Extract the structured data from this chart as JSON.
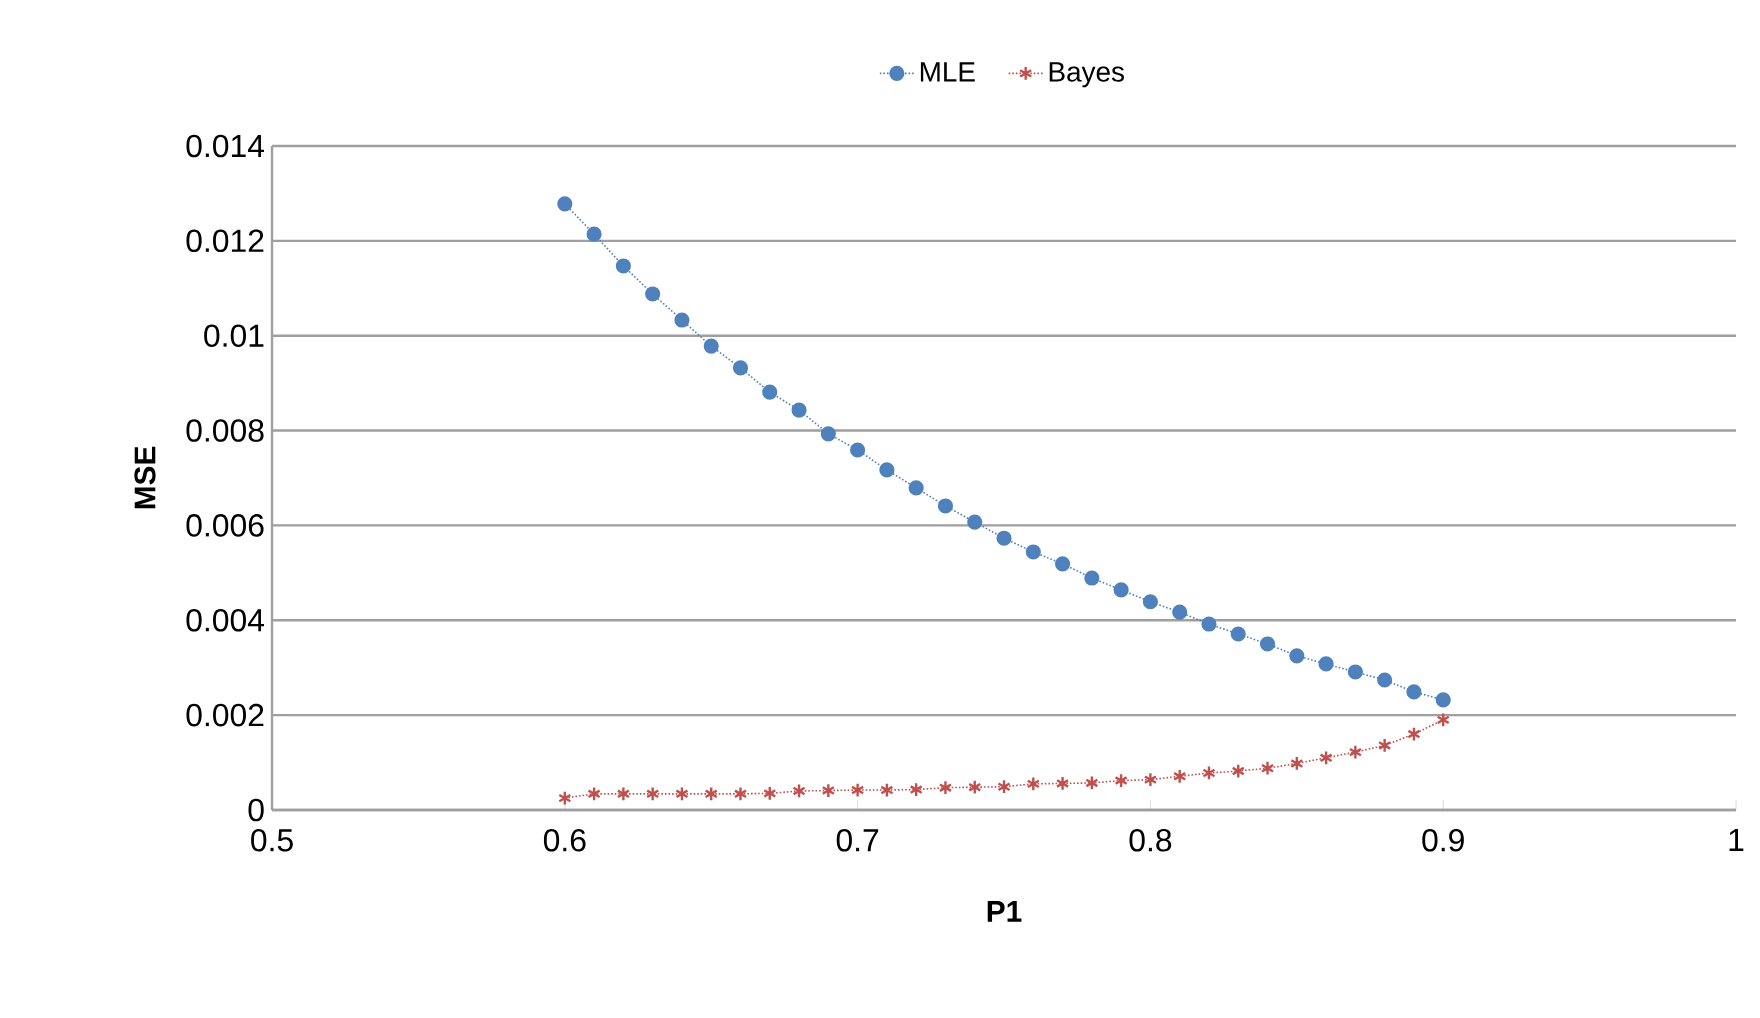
{
  "chart_data": {
    "type": "line",
    "xlabel": "P1",
    "ylabel": "MSE",
    "x": [
      0.6,
      0.61,
      0.62,
      0.63,
      0.64,
      0.65,
      0.66,
      0.67,
      0.68,
      0.69,
      0.7,
      0.71,
      0.72,
      0.73,
      0.74,
      0.75,
      0.76,
      0.77,
      0.78,
      0.79,
      0.8,
      0.81,
      0.82,
      0.83,
      0.84,
      0.85,
      0.86,
      0.87,
      0.88,
      0.89,
      0.9
    ],
    "series": [
      {
        "name": "MLE",
        "color": "#4f81bd",
        "marker": "circle",
        "line_style": "dotted",
        "values": [
          0.01278,
          0.01214,
          0.01147,
          0.01088,
          0.01033,
          0.00978,
          0.00932,
          0.00881,
          0.00843,
          0.00793,
          0.00759,
          0.00717,
          0.00679,
          0.00641,
          0.00607,
          0.00573,
          0.00544,
          0.00519,
          0.00489,
          0.00464,
          0.00439,
          0.00417,
          0.00392,
          0.00371,
          0.0035,
          0.00325,
          0.00308,
          0.00291,
          0.00274,
          0.00249,
          0.00232
        ]
      },
      {
        "name": "Bayes",
        "color": "#c0504d",
        "marker": "cross",
        "line_style": "dotted",
        "values": [
          0.00025,
          0.00034,
          0.00034,
          0.00034,
          0.00034,
          0.00034,
          0.00034,
          0.00035,
          0.0004,
          0.00041,
          0.00042,
          0.00042,
          0.00043,
          0.00047,
          0.00048,
          0.00049,
          0.00055,
          0.00056,
          0.00057,
          0.00062,
          0.00064,
          0.00071,
          0.00078,
          0.00082,
          0.00088,
          0.00098,
          0.0011,
          0.00122,
          0.00136,
          0.0016,
          0.0019
        ]
      }
    ],
    "xlim": [
      0.5,
      1
    ],
    "xticks": [
      0.5,
      0.6,
      0.7,
      0.8,
      0.9,
      1
    ],
    "ylim": [
      0,
      0.014
    ],
    "yticks": [
      0,
      0.002,
      0.004,
      0.006,
      0.008,
      0.01,
      0.012,
      0.014
    ],
    "grid": "y",
    "legend": "top"
  }
}
